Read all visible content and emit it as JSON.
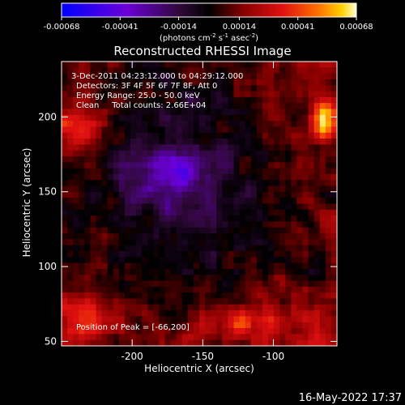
{
  "chart_data": {
    "type": "heatmap",
    "title": "Reconstructed RHESSI Image",
    "xlabel": "Heliocentric X (arcsec)",
    "ylabel": "Heliocentric Y (arcsec)",
    "xlim": [
      -250,
      -55
    ],
    "ylim": [
      47,
      237
    ],
    "xticks": [
      -200,
      -150,
      -100
    ],
    "yticks": [
      50,
      100,
      150,
      200
    ],
    "colorbar": {
      "ticks": [
        "-0.00068",
        "-0.00041",
        "-0.00014",
        "0.00014",
        "0.00041",
        "0.00068"
      ],
      "range": [
        -0.00068,
        0.00068
      ],
      "unit_prefix": "(photons cm",
      "unit_exp1": "-2",
      "unit_mid": " s",
      "unit_exp2": "-1",
      "unit_mid2": " asec",
      "unit_exp3": "-2",
      "unit_suffix": ")"
    },
    "annotations": [
      "3-Dec-2011 04:23:12.000 to 04:29:12.000",
      "Detectors: 3F 4F 5F 6F 7F 8F, Att 0",
      "Energy Range: 25.0 - 50.0 keV",
      "Clean     Total counts: 2.66E+04"
    ],
    "peak_label": "Position of Peak = [-66,200]",
    "peak": [
      -66,
      200
    ],
    "timestamp": "16-May-2022 17:37",
    "colormap": [
      "#0000ff",
      "#6a00d8",
      "#2a0830",
      "#000000",
      "#7a0000",
      "#d01010",
      "#ff6000",
      "#ffc000",
      "#ffff80"
    ]
  }
}
